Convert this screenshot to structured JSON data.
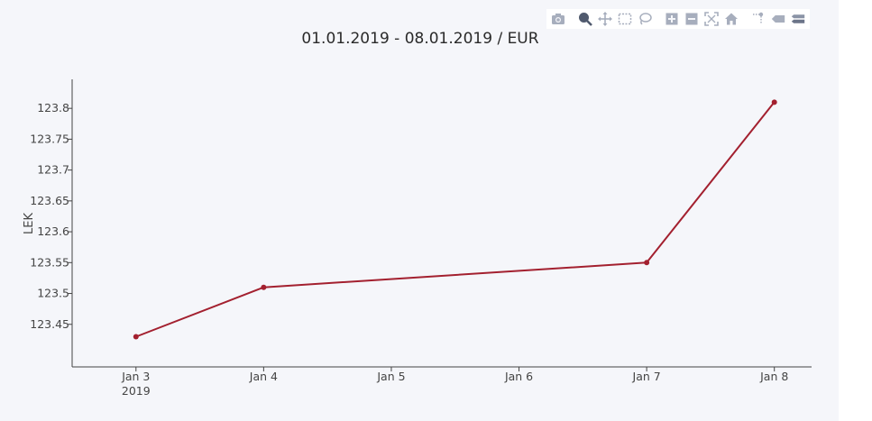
{
  "chart_data": {
    "type": "line",
    "title": "01.01.2019 - 08.01.2019 / EUR",
    "xlabel": "",
    "ylabel": "LEK",
    "x": [
      "2019-01-03",
      "2019-01-04",
      "2019-01-07",
      "2019-01-08"
    ],
    "x_ticks": [
      {
        "date": "2019-01-03",
        "label": "Jan 3",
        "sublabel": "2019"
      },
      {
        "date": "2019-01-04",
        "label": "Jan 4",
        "sublabel": ""
      },
      {
        "date": "2019-01-05",
        "label": "Jan 5",
        "sublabel": ""
      },
      {
        "date": "2019-01-06",
        "label": "Jan 6",
        "sublabel": ""
      },
      {
        "date": "2019-01-07",
        "label": "Jan 7",
        "sublabel": ""
      },
      {
        "date": "2019-01-08",
        "label": "Jan 8",
        "sublabel": ""
      }
    ],
    "xlim": [
      "2019-01-02T12:00",
      "2019-01-08T07:00"
    ],
    "series": [
      {
        "values": [
          123.43,
          123.51,
          123.55,
          123.81
        ],
        "color": "#a3202f"
      }
    ],
    "y_ticks": [
      123.45,
      123.5,
      123.55,
      123.6,
      123.65,
      123.7,
      123.75,
      123.8
    ],
    "ylim": [
      123.381,
      123.847
    ],
    "grid": false,
    "legend": "none"
  },
  "modebar": {
    "buttons": [
      {
        "name": "camera-icon",
        "active": false
      },
      {
        "name": "zoom-icon",
        "active": true
      },
      {
        "name": "pan-icon",
        "active": false
      },
      {
        "name": "box-select-icon",
        "active": false
      },
      {
        "name": "lasso-select-icon",
        "active": false
      },
      {
        "name": "zoom-in-icon",
        "active": false
      },
      {
        "name": "zoom-out-icon",
        "active": false
      },
      {
        "name": "autoscale-icon",
        "active": false
      },
      {
        "name": "reset-axes-icon",
        "active": false
      },
      {
        "name": "spike-lines-icon",
        "active": false
      },
      {
        "name": "hover-closest-icon",
        "active": false
      },
      {
        "name": "hover-compare-icon",
        "active": false
      }
    ]
  }
}
